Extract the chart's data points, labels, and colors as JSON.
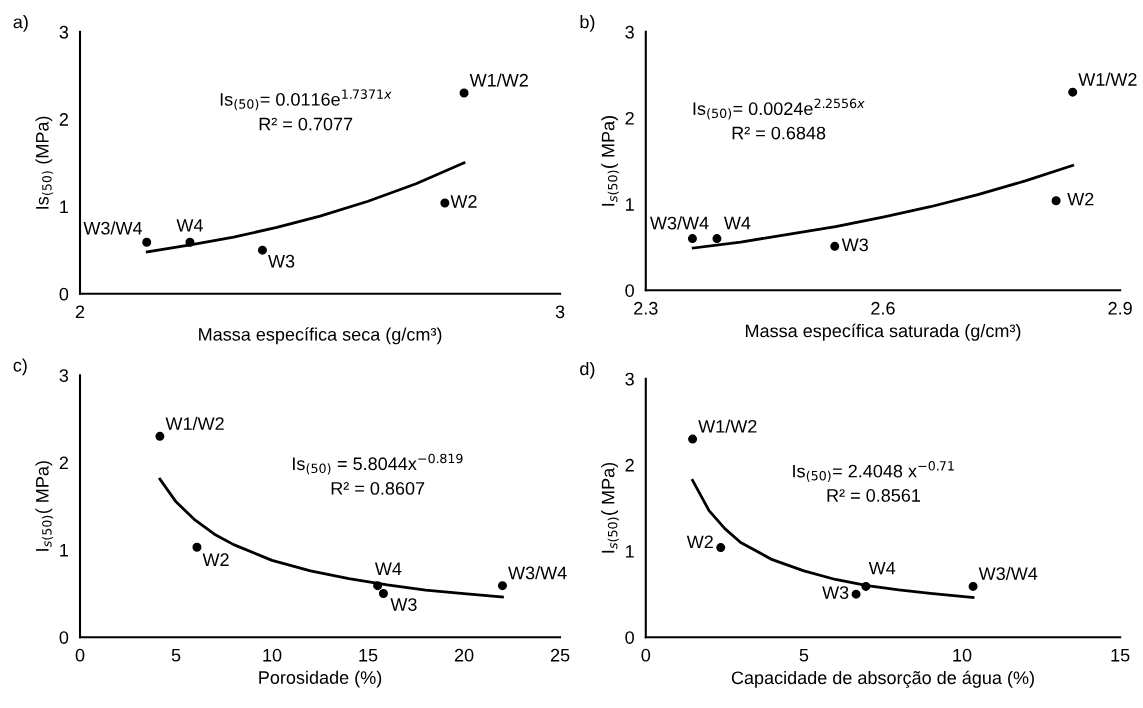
{
  "chart_data": [
    {
      "type": "scatter",
      "xlabel": "Massa específica seca (g/cm³)",
      "ylabel": "Is$_{(50)}$ (MPa)",
      "xlim": [
        2,
        3
      ],
      "xticks": [
        2,
        3
      ],
      "ylim": [
        0,
        3
      ],
      "yticks": [
        0,
        1,
        2,
        3
      ],
      "grid": false,
      "marker": "circle",
      "series": [
        {
          "color": "#000000",
          "x": [
            2.139,
            2.229,
            2.38,
            2.76,
            2.8
          ],
          "values": [
            0.59,
            0.59,
            0.5,
            1.04,
            2.3
          ]
        },
        {
          "type": "line",
          "color": "#000000",
          "line_style": "solid",
          "marker": "none",
          "x": [
            2.14,
            2.23,
            2.32,
            2.41,
            2.5,
            2.6,
            2.7,
            2.8
          ],
          "values": [
            0.48,
            0.56,
            0.65,
            0.76,
            0.89,
            1.06,
            1.26,
            1.5
          ]
        }
      ],
      "annotations": [
        {
          "text": "W3/W4",
          "x": 2.139,
          "y": 0.59
        },
        {
          "text": "W4",
          "x": 2.229,
          "y": 0.59
        },
        {
          "text": "W3",
          "x": 2.38,
          "y": 0.5
        },
        {
          "text": "W2",
          "x": 2.76,
          "y": 1.04
        },
        {
          "text": "W1/W2",
          "x": 2.8,
          "y": 2.3
        },
        "a)",
        "Is$_{(50)}$= 0.0116e$^{1.7371x}$",
        "R² = 0.7077"
      ]
    },
    {
      "type": "scatter",
      "xlabel": "Massa específica saturada (g/cm³)",
      "ylabel": "I$_{s(50)}$( MPa)",
      "xlim": [
        2.3,
        2.9
      ],
      "xticks": [
        2.3,
        2.6,
        2.9
      ],
      "ylim": [
        0,
        3
      ],
      "yticks": [
        0,
        1,
        2,
        3
      ],
      "grid": false,
      "marker": "circle",
      "series": [
        {
          "color": "#000000",
          "x": [
            2.359,
            2.39,
            2.539,
            2.819,
            2.84
          ],
          "values": [
            0.6,
            0.6,
            0.51,
            1.04,
            2.3
          ]
        },
        {
          "type": "line",
          "color": "#000000",
          "line_style": "solid",
          "marker": "none",
          "x": [
            2.36,
            2.42,
            2.48,
            2.54,
            2.6,
            2.66,
            2.72,
            2.78,
            2.84
          ],
          "values": [
            0.49,
            0.56,
            0.65,
            0.74,
            0.85,
            0.97,
            1.11,
            1.27,
            1.45
          ]
        }
      ],
      "annotations": [
        {
          "text": "W3/W4",
          "x": 2.359,
          "y": 0.6
        },
        {
          "text": "W4",
          "x": 2.39,
          "y": 0.6
        },
        {
          "text": "W3",
          "x": 2.539,
          "y": 0.51
        },
        {
          "text": "W2",
          "x": 2.819,
          "y": 1.04
        },
        {
          "text": "W1/W2",
          "x": 2.84,
          "y": 2.3
        },
        "b)",
        "Is$_{(50)}$= 0.0024e$^{2.2556x}$",
        "R² = 0.6848"
      ]
    },
    {
      "type": "scatter",
      "xlabel": "Porosidade (%)",
      "ylabel": "I$_{s(50)}$( MPa)",
      "xlim": [
        0,
        25
      ],
      "xticks": [
        0,
        5,
        10,
        15,
        20,
        25
      ],
      "ylim": [
        0,
        3
      ],
      "yticks": [
        0,
        1,
        2,
        3
      ],
      "grid": false,
      "marker": "circle",
      "series": [
        {
          "color": "#000000",
          "x": [
            4.16,
            6.09,
            15.5,
            15.8,
            22.0
          ],
          "values": [
            2.3,
            1.03,
            0.59,
            0.5,
            0.59
          ]
        },
        {
          "type": "line",
          "color": "#000000",
          "line_style": "solid",
          "marker": "none",
          "x": [
            4.16,
            5,
            6,
            7,
            8,
            10,
            12,
            14,
            16,
            18,
            20,
            22
          ],
          "values": [
            1.81,
            1.55,
            1.34,
            1.18,
            1.06,
            0.88,
            0.76,
            0.67,
            0.6,
            0.54,
            0.5,
            0.46
          ]
        }
      ],
      "annotations": [
        {
          "text": "W1/W2",
          "x": 4.16,
          "y": 2.3
        },
        {
          "text": "W2",
          "x": 6.09,
          "y": 1.03
        },
        {
          "text": "W4",
          "x": 15.5,
          "y": 0.59
        },
        {
          "text": "W3",
          "x": 15.8,
          "y": 0.5
        },
        {
          "text": "W3/W4",
          "x": 22.0,
          "y": 0.59
        },
        "c)",
        "Is$_{(50)}$ = 5.8044x$^{−0.819}$",
        "R² = 0.8607"
      ]
    },
    {
      "type": "scatter",
      "xlabel": "Capacidade de absorção de água (%)",
      "ylabel": "I$_{s(50)}$( MPa)",
      "xlim": [
        0,
        15
      ],
      "xticks": [
        0,
        5,
        10,
        15
      ],
      "ylim": [
        0,
        3
      ],
      "yticks": [
        0,
        1,
        2,
        3
      ],
      "grid": false,
      "marker": "circle",
      "series": [
        {
          "color": "#000000",
          "x": [
            1.48,
            2.37,
            6.96,
            6.65,
            10.35
          ],
          "values": [
            2.3,
            1.04,
            0.59,
            0.5,
            0.59
          ]
        },
        {
          "type": "line",
          "color": "#000000",
          "line_style": "solid",
          "marker": "none",
          "x": [
            1.48,
            2,
            2.5,
            3,
            4,
            5,
            6,
            7,
            8,
            9,
            10.35
          ],
          "values": [
            1.82,
            1.47,
            1.26,
            1.1,
            0.9,
            0.77,
            0.67,
            0.6,
            0.55,
            0.51,
            0.46
          ]
        }
      ],
      "annotations": [
        {
          "text": "W1/W2",
          "x": 1.48,
          "y": 2.3
        },
        {
          "text": "W2",
          "x": 2.37,
          "y": 1.04
        },
        {
          "text": "W4",
          "x": 6.96,
          "y": 0.59
        },
        {
          "text": "W3",
          "x": 6.65,
          "y": 0.5
        },
        {
          "text": "W3/W4",
          "x": 10.35,
          "y": 0.59
        },
        "d)",
        "Is$_{(50)}$= 2.4048 x$^{−0.71}$",
        "R² = 0.8561"
      ]
    }
  ]
}
